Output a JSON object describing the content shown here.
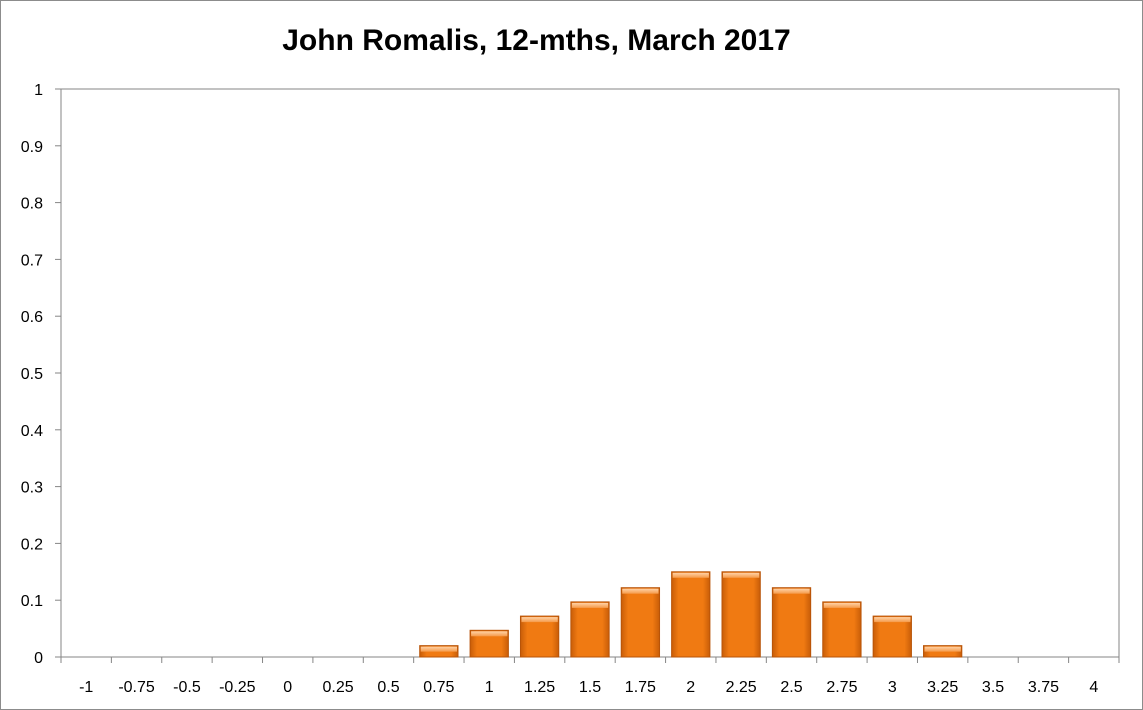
{
  "chart_data": {
    "type": "bar",
    "title": "John Romalis, 12-mths, March 2017",
    "xlabel": "",
    "ylabel": "",
    "categories": [
      "-1",
      "-0.75",
      "-0.5",
      "-0.25",
      "0",
      "0.25",
      "0.5",
      "0.75",
      "1",
      "1.25",
      "1.5",
      "1.75",
      "2",
      "2.25",
      "2.5",
      "2.75",
      "3",
      "3.25",
      "3.5",
      "3.75",
      "4"
    ],
    "values": [
      0,
      0,
      0,
      0,
      0,
      0,
      0,
      0.02,
      0.047,
      0.072,
      0.097,
      0.122,
      0.15,
      0.15,
      0.122,
      0.097,
      0.072,
      0.02,
      0,
      0,
      0
    ],
    "ylim": [
      0,
      1
    ],
    "yticks": [
      "0",
      "0.1",
      "0.2",
      "0.3",
      "0.4",
      "0.5",
      "0.6",
      "0.7",
      "0.8",
      "0.9",
      "1"
    ],
    "grid": false,
    "legend": "none",
    "bar_color": "#f07a12",
    "bar_edge_color": "#b85408",
    "axis_color": "#868686"
  }
}
